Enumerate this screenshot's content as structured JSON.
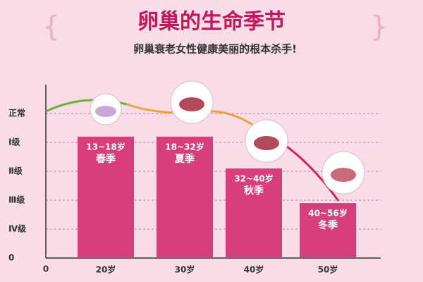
{
  "chart_data": {
    "type": "bar",
    "title": "卵巢的生命季节",
    "subtitle": "卵巢衰老女性健康美丽的根本杀手!",
    "categories": [
      "20岁",
      "30岁",
      "40岁",
      "50岁"
    ],
    "x_origin_label": "0",
    "values": [
      4.2,
      4.2,
      3.1,
      1.9
    ],
    "bar_labels": [
      "13~18岁",
      "18~32岁",
      "32~40岁",
      "40~56岁"
    ],
    "season_labels": [
      "春季",
      "夏季",
      "秋季",
      "冬季"
    ],
    "color": "#d63f7a",
    "ylim": [
      0,
      6
    ],
    "yticks": [
      0,
      {
        "value": 1,
        "label": "Ⅳ级"
      },
      {
        "value": 2,
        "label": "Ⅲ级"
      },
      {
        "value": 3,
        "label": "Ⅱ级"
      },
      {
        "value": 4,
        "label": "Ⅰ级"
      },
      {
        "value": 5,
        "label": "正常"
      }
    ],
    "grid": true
  }
}
